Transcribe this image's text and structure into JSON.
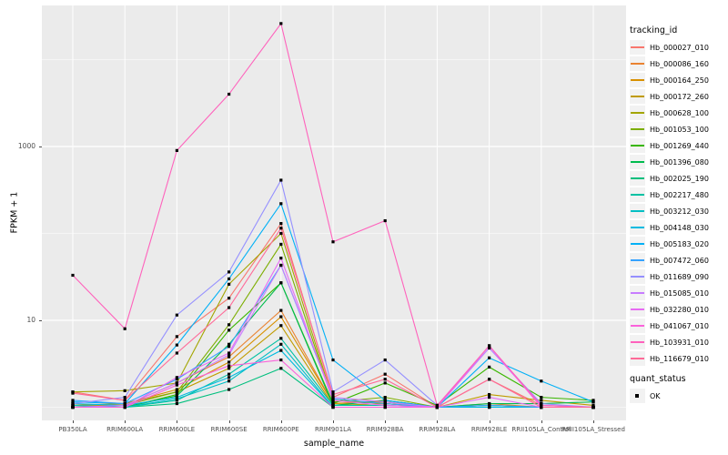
{
  "figure": {
    "x_axis_title": "sample_name",
    "y_axis_title": "FPKM + 1"
  },
  "legend": {
    "tracking_title": "tracking_id",
    "quant_title": "quant_status",
    "quant_items": [
      {
        "label": "OK",
        "shape": "filled-square",
        "color": "#000000"
      }
    ]
  },
  "colors": {
    "panel_bg": "#EBEBEB",
    "grid": "#FFFFFF",
    "tick_text": "#4D4D4D",
    "point": "#000000",
    "legend_key_bg": "#F2F2F2"
  },
  "chart_data": {
    "type": "line",
    "title": "",
    "xlabel": "sample_name",
    "ylabel": "FPKM + 1",
    "y_scale": "log10",
    "y_ticks": [
      10,
      1000
    ],
    "y_minor_ticks": [
      1,
      100,
      10000
    ],
    "ylim": [
      0.7,
      42000
    ],
    "grid": true,
    "legend_position": "right",
    "point_shape": "filled-square",
    "point_color": "#000000",
    "categories": [
      "PB350LA",
      "RRIM600LA",
      "RRIM600LE",
      "RRIM600SE",
      "RRIM600PE",
      "RRIM901LA",
      "RRIM928BA",
      "RRIM928LA",
      "RRIM928LE",
      "RRII105LA_Control",
      "RRII105LA_Stressed"
    ],
    "series": [
      {
        "name": "Hb_000027_010",
        "color": "#F8766D",
        "values": [
          1.5,
          1.2,
          6.5,
          18,
          130,
          1.3,
          2.4,
          1.0,
          2.1,
          1.05,
          1.0
        ]
      },
      {
        "name": "Hb_000086_160",
        "color": "#EA8331",
        "values": [
          1.05,
          1.05,
          1.9,
          3.8,
          13,
          1.1,
          1.2,
          1.0,
          1.1,
          1.0,
          1.0
        ]
      },
      {
        "name": "Hb_000164_250",
        "color": "#D89000",
        "values": [
          1.0,
          1.1,
          1.6,
          3.3,
          11,
          1.1,
          1.15,
          1.0,
          1.05,
          1.0,
          1.0
        ]
      },
      {
        "name": "Hb_000172_260",
        "color": "#C09B00",
        "values": [
          1.05,
          1.1,
          1.5,
          2.8,
          8.7,
          1.05,
          1.1,
          1.0,
          1.4,
          1.2,
          1.05
        ]
      },
      {
        "name": "Hb_000628_100",
        "color": "#A3A500",
        "values": [
          1.5,
          1.55,
          1.9,
          26,
          100,
          1.2,
          1.1,
          1.0,
          1.0,
          1.0,
          1.0
        ]
      },
      {
        "name": "Hb_001053_100",
        "color": "#7CAE00",
        "values": [
          1.0,
          1.05,
          1.5,
          8.9,
          75,
          1.15,
          1.3,
          1.0,
          1.05,
          1.0,
          1.0
        ]
      },
      {
        "name": "Hb_001269_440",
        "color": "#39B600",
        "values": [
          1.0,
          1.0,
          1.4,
          7.7,
          27,
          1.1,
          1.9,
          1.05,
          2.9,
          1.3,
          1.2
        ]
      },
      {
        "name": "Hb_001396_080",
        "color": "#00BB4E",
        "values": [
          1.0,
          1.0,
          1.35,
          5.3,
          27,
          1.05,
          1.2,
          1.0,
          1.1,
          1.1,
          1.15
        ]
      },
      {
        "name": "Hb_002025_190",
        "color": "#00BF7D",
        "values": [
          1.0,
          1.0,
          1.1,
          1.6,
          2.8,
          1.0,
          1.0,
          1.0,
          1.0,
          1.0,
          1.0
        ]
      },
      {
        "name": "Hb_002217_480",
        "color": "#00C1A3",
        "values": [
          1.0,
          1.0,
          1.2,
          2.4,
          6.2,
          1.05,
          1.05,
          1.0,
          1.0,
          1.0,
          1.0
        ]
      },
      {
        "name": "Hb_003212_030",
        "color": "#00BFC4",
        "values": [
          1.05,
          1.0,
          1.25,
          2.0,
          5.3,
          1.0,
          1.0,
          1.0,
          1.05,
          1.0,
          1.0
        ]
      },
      {
        "name": "Hb_004148_030",
        "color": "#00BAE0",
        "values": [
          1.1,
          1.05,
          1.3,
          2.2,
          4.5,
          1.0,
          1.0,
          1.0,
          1.0,
          1.0,
          1.0
        ]
      },
      {
        "name": "Hb_005183_020",
        "color": "#00B0F6",
        "values": [
          1.15,
          1.1,
          5.2,
          30,
          220,
          3.5,
          1.2,
          1.0,
          3.7,
          2.0,
          1.15
        ]
      },
      {
        "name": "Hb_007472_060",
        "color": "#35A2FF",
        "values": [
          1.2,
          1.1,
          2.1,
          5.0,
          43,
          1.25,
          1.1,
          1.0,
          1.05,
          1.0,
          1.0
        ]
      },
      {
        "name": "Hb_011689_090",
        "color": "#9590FF",
        "values": [
          1.1,
          1.3,
          11.5,
          36,
          410,
          1.5,
          3.5,
          1.05,
          4.8,
          1.1,
          1.0
        ]
      },
      {
        "name": "Hb_015085_010",
        "color": "#C77CFF",
        "values": [
          1.0,
          1.05,
          1.9,
          4.0,
          43,
          1.3,
          1.15,
          1.0,
          4.8,
          1.05,
          1.0
        ]
      },
      {
        "name": "Hb_032280_010",
        "color": "#E76BF3",
        "values": [
          1.0,
          1.0,
          2.2,
          4.2,
          52,
          1.2,
          1.05,
          1.0,
          1.3,
          1.0,
          1.0
        ]
      },
      {
        "name": "Hb_041067_010",
        "color": "#FA62DB",
        "values": [
          1.0,
          1.0,
          1.8,
          3.0,
          3.5,
          1.0,
          1.0,
          1.0,
          5.1,
          1.0,
          1.0
        ]
      },
      {
        "name": "Hb_103931_010",
        "color": "#FF62BC",
        "values": [
          33,
          8,
          900,
          4000,
          26000,
          80,
          140,
          1.05,
          5.1,
          1.05,
          1.0
        ]
      },
      {
        "name": "Hb_116679_010",
        "color": "#FF6A98",
        "values": [
          1.45,
          1.2,
          4.2,
          14,
          115,
          1.4,
          2.1,
          1.0,
          2.1,
          1.0,
          1.0
        ]
      }
    ]
  }
}
